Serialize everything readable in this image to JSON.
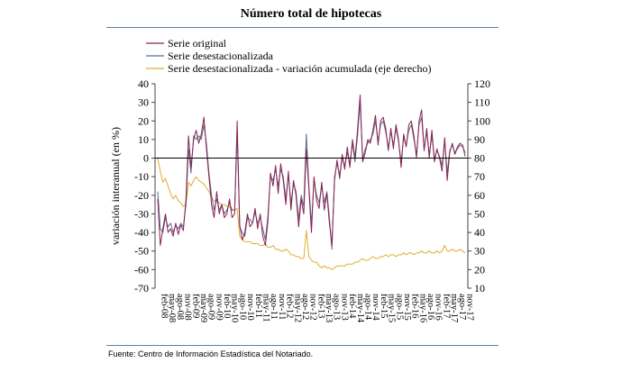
{
  "title": "Número total de hipotecas",
  "source": "Fuente: Centro de Información Estadística del Notariado.",
  "chart_data": {
    "type": "line",
    "ylabel": "variación interanual (en %)",
    "ylim": [
      -70,
      40
    ],
    "yticks": [
      40,
      30,
      20,
      10,
      0,
      -10,
      -20,
      -30,
      -40,
      -50,
      -60,
      -70
    ],
    "y2lim": [
      10,
      120
    ],
    "y2ticks": [
      120,
      110,
      100,
      90,
      80,
      70,
      60,
      50,
      40,
      30,
      20,
      10
    ],
    "xticks": [
      "feb-08",
      "may-08",
      "ago-08",
      "nov-08",
      "feb-09",
      "may-09",
      "ago-09",
      "nov-09",
      "feb-10",
      "may-10",
      "ago-10",
      "nov-10",
      "feb-11",
      "may-11",
      "ago-11",
      "nov-11",
      "feb-12",
      "may-12",
      "ago-12",
      "nov-12",
      "feb-13",
      "may-13",
      "ago-13",
      "nov-13",
      "feb-14",
      "may-14",
      "ago-14",
      "nov-14",
      "feb-15",
      "may-15",
      "ago-15",
      "nov-15",
      "feb-16",
      "may-16",
      "ago-16",
      "nov-16",
      "feb-17",
      "may-17",
      "ago-17",
      "nov-17"
    ],
    "grid": false,
    "legend_position": "top-left",
    "series": [
      {
        "name": "Serie original",
        "color": "#8b2252",
        "axis": "left",
        "values": [
          -22,
          -47,
          -38,
          -30,
          -40,
          -38,
          -42,
          -35,
          -41,
          -36,
          -39,
          -22,
          12,
          -5,
          10,
          15,
          8,
          13,
          22,
          5,
          -10,
          -25,
          -32,
          -18,
          -30,
          -25,
          -32,
          -30,
          -22,
          -32,
          -30,
          20,
          -36,
          -44,
          -40,
          -30,
          -37,
          -35,
          -27,
          -38,
          -30,
          -42,
          -47,
          -34,
          -8,
          -15,
          -4,
          -19,
          -3,
          -12,
          -25,
          -7,
          -28,
          -12,
          -20,
          -37,
          -22,
          -30,
          5,
          -17,
          -40,
          -10,
          -23,
          -27,
          -13,
          -28,
          -19,
          -35,
          -47,
          -12,
          -1,
          -11,
          2,
          -6,
          6,
          -5,
          10,
          0,
          15,
          34,
          -2,
          3,
          10,
          8,
          15,
          23,
          7,
          20,
          22,
          16,
          4,
          16,
          5,
          18,
          10,
          -5,
          13,
          6,
          18,
          20,
          12,
          0,
          20,
          26,
          4,
          16,
          0,
          15,
          -2,
          5,
          0,
          -7,
          11,
          -12,
          3,
          8,
          2,
          6,
          8,
          7,
          1
        ]
      },
      {
        "name": "Serie desestacionalizada",
        "color": "#5a6f8e",
        "axis": "left",
        "values": [
          -18,
          -38,
          -40,
          -32,
          -37,
          -35,
          -40,
          -36,
          -38,
          -35,
          -37,
          -25,
          5,
          -8,
          12,
          10,
          12,
          10,
          18,
          8,
          -8,
          -20,
          -28,
          -22,
          -28,
          -25,
          -30,
          -28,
          -24,
          -28,
          -28,
          14,
          -37,
          -40,
          -42,
          -32,
          -33,
          -35,
          -29,
          -35,
          -32,
          -38,
          -44,
          -31,
          -10,
          -12,
          -6,
          -15,
          -6,
          -10,
          -22,
          -9,
          -24,
          -14,
          -18,
          -33,
          -20,
          -26,
          13,
          -15,
          -36,
          -12,
          -20,
          -24,
          -15,
          -24,
          -18,
          -32,
          -49,
          -10,
          -3,
          -9,
          0,
          -4,
          3,
          -3,
          8,
          -2,
          12,
          30,
          0,
          5,
          8,
          10,
          13,
          20,
          9,
          18,
          20,
          14,
          6,
          14,
          7,
          16,
          9,
          -2,
          11,
          7,
          15,
          18,
          10,
          2,
          18,
          22,
          5,
          14,
          2,
          12,
          0,
          4,
          1,
          -4,
          9,
          -8,
          4,
          7,
          3,
          5,
          7,
          6,
          3
        ]
      },
      {
        "name": "Serie desestacionalizada - variación acumulada (eje derecho)",
        "color": "#e0ad32",
        "axis": "right",
        "values": [
          80,
          73,
          67,
          69,
          65,
          61,
          58,
          60,
          57,
          56,
          54,
          55,
          67,
          65,
          68,
          70,
          68,
          67,
          66,
          64,
          62,
          59,
          57,
          57,
          56,
          55,
          55,
          54,
          54,
          52,
          52,
          53,
          38,
          36,
          35,
          35,
          35,
          34,
          34,
          34,
          33,
          33,
          34,
          32,
          32,
          33,
          31,
          31,
          30,
          30,
          31,
          30,
          28,
          28,
          27,
          27,
          26,
          26,
          41,
          27,
          25,
          24,
          24,
          22,
          21,
          22,
          21,
          21,
          20,
          21,
          22,
          22,
          22,
          22,
          23,
          23,
          23,
          24,
          24,
          25,
          26,
          25,
          25,
          26,
          27,
          26,
          26,
          27,
          27,
          28,
          27,
          28,
          28,
          27,
          28,
          28,
          29,
          28,
          29,
          29,
          28,
          29,
          29,
          30,
          29,
          29,
          30,
          29,
          29,
          30,
          29,
          30,
          33,
          30,
          30,
          31,
          30,
          30,
          31,
          30,
          29
        ]
      }
    ]
  }
}
